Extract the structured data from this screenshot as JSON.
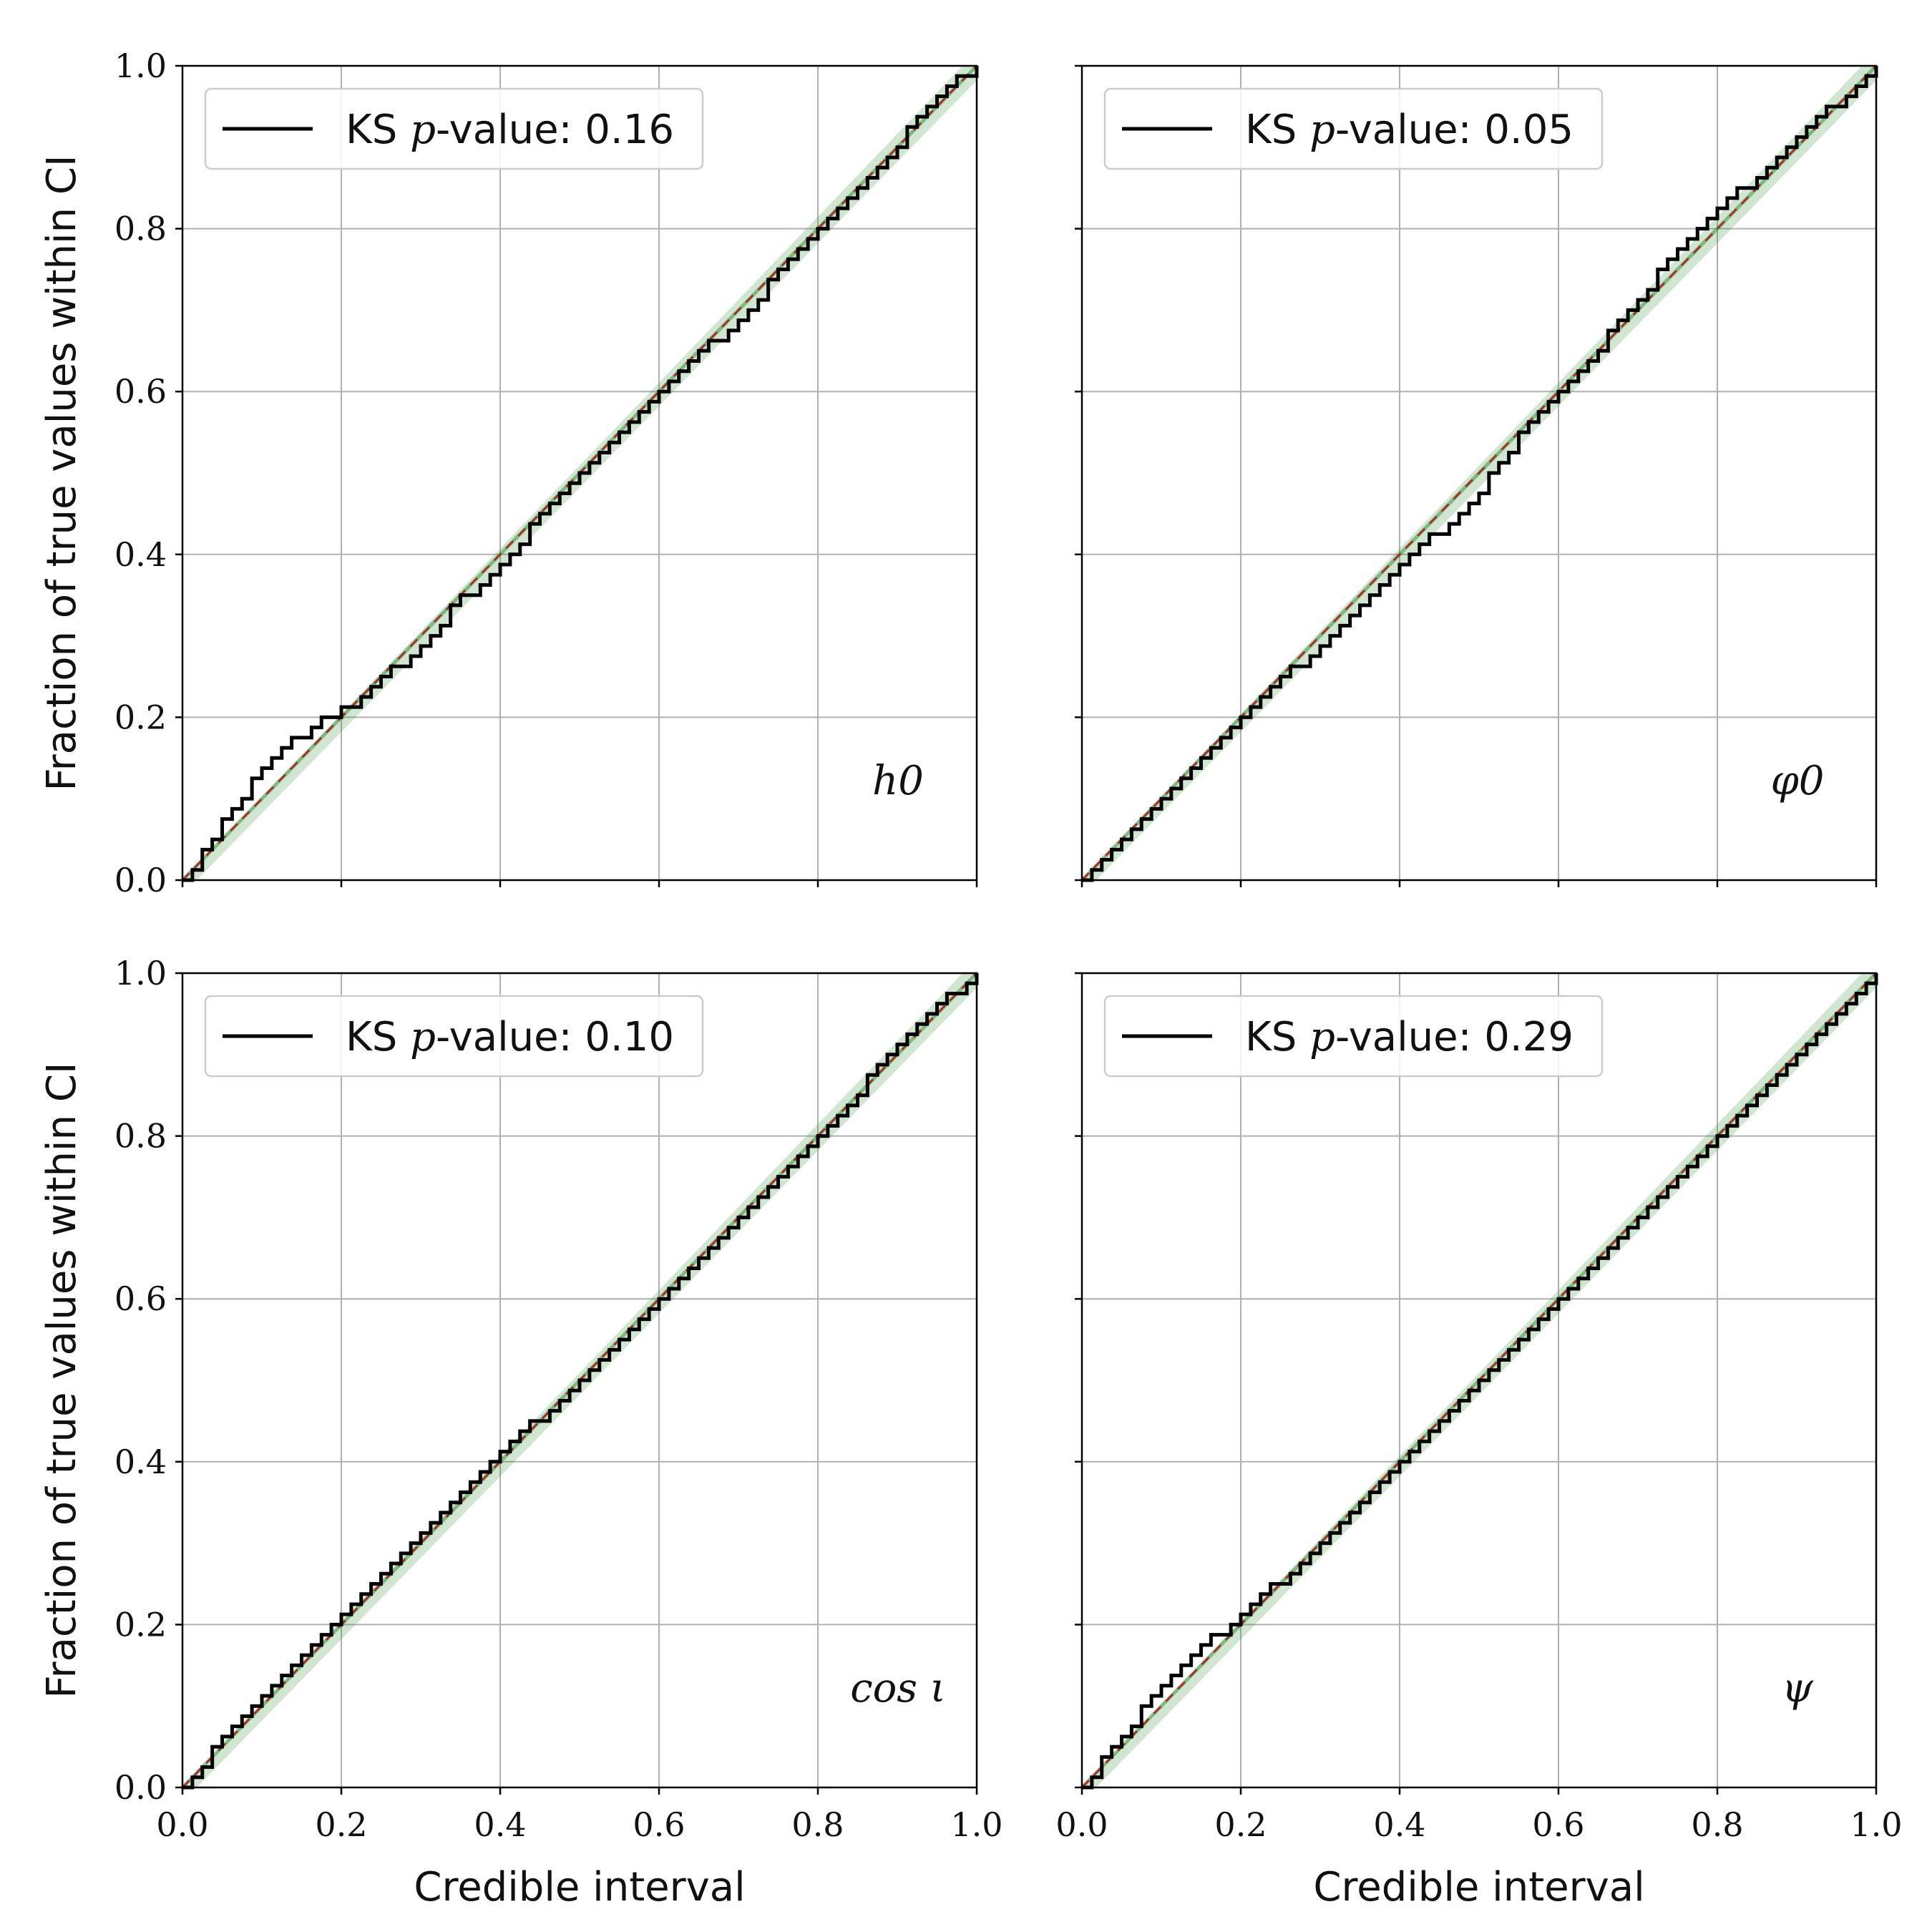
{
  "chart_data": [
    {
      "type": "line",
      "parameter_label": "h0",
      "legend": {
        "label_prefix": "KS ",
        "label_italic": "p",
        "label_suffix": "-value: 0.16"
      },
      "ks_p_value": 0.16,
      "xlabel": "",
      "ylabel": "Fraction of true values within CI",
      "xlim": [
        0,
        1
      ],
      "ylim": [
        0,
        1
      ],
      "x_ticks": [
        "0.0",
        "0.2",
        "0.4",
        "0.6",
        "0.8",
        "1.0"
      ],
      "y_ticks": [
        "0.0",
        "0.2",
        "0.4",
        "0.6",
        "0.8",
        "1.0"
      ],
      "grid": true,
      "legend_position": "top-left",
      "series": [
        {
          "x": [
            0,
            0.05,
            0.1,
            0.15,
            0.2,
            0.25,
            0.3,
            0.35,
            0.4,
            0.45,
            0.5,
            0.55,
            0.6,
            0.65,
            0.7,
            0.75,
            0.8,
            0.85,
            0.9,
            0.95,
            1.0
          ],
          "y": [
            0,
            0.07,
            0.14,
            0.18,
            0.21,
            0.245,
            0.29,
            0.345,
            0.39,
            0.445,
            0.495,
            0.545,
            0.595,
            0.645,
            0.69,
            0.745,
            0.795,
            0.85,
            0.905,
            0.965,
            1.0
          ]
        }
      ]
    },
    {
      "type": "line",
      "parameter_label": "φ0",
      "legend": {
        "label_prefix": "KS ",
        "label_italic": "p",
        "label_suffix": "-value: 0.05"
      },
      "ks_p_value": 0.05,
      "xlabel": "",
      "ylabel": "",
      "xlim": [
        0,
        1
      ],
      "ylim": [
        0,
        1
      ],
      "x_ticks": [
        "0.0",
        "0.2",
        "0.4",
        "0.6",
        "0.8",
        "1.0"
      ],
      "y_ticks": [
        "0.0",
        "0.2",
        "0.4",
        "0.6",
        "0.8",
        "1.0"
      ],
      "grid": true,
      "legend_position": "top-left",
      "series": [
        {
          "x": [
            0,
            0.05,
            0.1,
            0.15,
            0.2,
            0.25,
            0.3,
            0.35,
            0.4,
            0.45,
            0.5,
            0.55,
            0.6,
            0.65,
            0.7,
            0.75,
            0.8,
            0.85,
            0.9,
            0.95,
            1.0
          ],
          "y": [
            0,
            0.045,
            0.1,
            0.155,
            0.205,
            0.245,
            0.29,
            0.34,
            0.39,
            0.43,
            0.48,
            0.545,
            0.6,
            0.655,
            0.715,
            0.775,
            0.825,
            0.865,
            0.915,
            0.955,
            1.0
          ]
        }
      ]
    },
    {
      "type": "line",
      "parameter_label": "cos ι",
      "legend": {
        "label_prefix": "KS ",
        "label_italic": "p",
        "label_suffix": "-value: 0.10"
      },
      "ks_p_value": 0.1,
      "xlabel": "Credible interval",
      "ylabel": "Fraction of true values within CI",
      "xlim": [
        0,
        1
      ],
      "ylim": [
        0,
        1
      ],
      "x_ticks": [
        "0.0",
        "0.2",
        "0.4",
        "0.6",
        "0.8",
        "1.0"
      ],
      "y_ticks": [
        "0.0",
        "0.2",
        "0.4",
        "0.6",
        "0.8",
        "1.0"
      ],
      "grid": true,
      "legend_position": "top-left",
      "series": [
        {
          "x": [
            0,
            0.05,
            0.1,
            0.15,
            0.2,
            0.25,
            0.3,
            0.35,
            0.4,
            0.45,
            0.5,
            0.55,
            0.6,
            0.65,
            0.7,
            0.75,
            0.8,
            0.85,
            0.9,
            0.95,
            1.0
          ],
          "y": [
            0,
            0.06,
            0.115,
            0.165,
            0.215,
            0.265,
            0.315,
            0.365,
            0.41,
            0.455,
            0.5,
            0.545,
            0.595,
            0.645,
            0.695,
            0.745,
            0.8,
            0.855,
            0.91,
            0.96,
            1.0
          ]
        }
      ]
    },
    {
      "type": "line",
      "parameter_label": "ψ",
      "legend": {
        "label_prefix": "KS ",
        "label_italic": "p",
        "label_suffix": "-value: 0.29"
      },
      "ks_p_value": 0.29,
      "xlabel": "Credible interval",
      "ylabel": "",
      "xlim": [
        0,
        1
      ],
      "ylim": [
        0,
        1
      ],
      "x_ticks": [
        "0.0",
        "0.2",
        "0.4",
        "0.6",
        "0.8",
        "1.0"
      ],
      "y_ticks": [
        "0.0",
        "0.2",
        "0.4",
        "0.6",
        "0.8",
        "1.0"
      ],
      "grid": true,
      "legend_position": "top-left",
      "series": [
        {
          "x": [
            0,
            0.05,
            0.1,
            0.15,
            0.2,
            0.25,
            0.3,
            0.35,
            0.4,
            0.45,
            0.5,
            0.55,
            0.6,
            0.65,
            0.7,
            0.75,
            0.8,
            0.85,
            0.9,
            0.95,
            1.0
          ],
          "y": [
            0,
            0.065,
            0.125,
            0.175,
            0.21,
            0.255,
            0.3,
            0.35,
            0.4,
            0.445,
            0.495,
            0.55,
            0.6,
            0.655,
            0.7,
            0.75,
            0.805,
            0.855,
            0.905,
            0.955,
            1.0
          ]
        }
      ]
    }
  ],
  "colors": {
    "line": "#000000",
    "diagonal": "#b22222",
    "band": "#2e8b2e",
    "grid": "#b0b0b0",
    "axis": "#000000"
  }
}
